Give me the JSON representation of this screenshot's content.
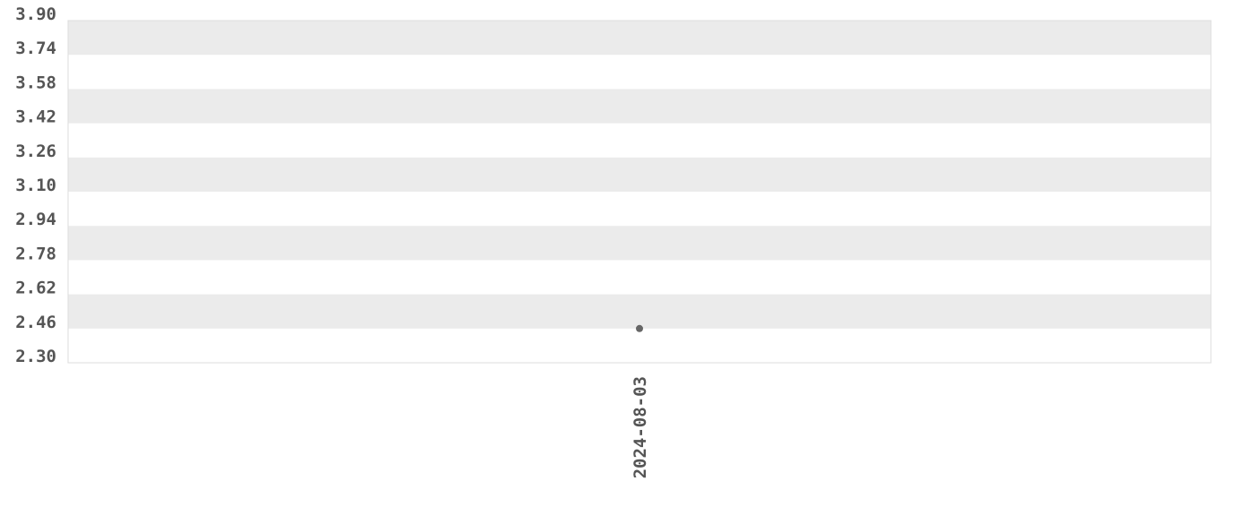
{
  "chart_data": {
    "type": "scatter",
    "title": "",
    "xlabel": "",
    "ylabel": "",
    "ylim": [
      2.3,
      3.9
    ],
    "y_ticks": [
      "3.90",
      "3.74",
      "3.58",
      "3.42",
      "3.26",
      "3.10",
      "2.94",
      "2.78",
      "2.62",
      "2.46",
      "2.30"
    ],
    "x_categories": [
      "2024-08-03"
    ],
    "points": [
      {
        "x": "2024-08-03",
        "y": 2.46
      }
    ],
    "grid": "alternating horizontal bands",
    "colors": {
      "band": "#ebebeb",
      "point": "#666666",
      "text": "#555555",
      "border": "#dddddd"
    }
  }
}
